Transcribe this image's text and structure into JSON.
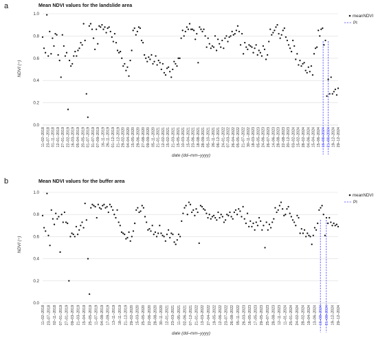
{
  "chart_data": [
    {
      "panel": "a",
      "type": "scatter",
      "title": "Mean NDVI values for the landslide area",
      "xlabel": "date (dd–mm–yyyy)",
      "ylabel": "NDVI (−)",
      "ylim": [
        0,
        1.0
      ],
      "yticks": [
        "0.0",
        "0.2",
        "0.4",
        "0.6",
        "0.8",
        "1.0"
      ],
      "grid": true,
      "legend_placement": "top-right",
      "x_tick_labels": [
        "11–02–2018",
        "23–07–2018",
        "01–11–2018",
        "12–01–2019",
        "27–01–2019",
        "22–02–2019",
        "16–03–2019",
        "05–04–2019",
        "20–05–2019",
        "01–07–2019",
        "31–07–2019",
        "07–09–2019",
        "16–11–2019",
        "26–11–2019",
        "01–12–2019",
        "21–12–2019",
        "29–02–2020",
        "04–04–2020",
        "15–05–2020",
        "29–06–2020",
        "27–08–2020",
        "09–09–2020",
        "05–11–2020",
        "21–01–2021",
        "12–02–2021",
        "15–02–2021",
        "21–03–2021",
        "15–05–2021",
        "10–03–2021",
        "15–04–2021",
        "23–06–2021",
        "18–08–2021",
        "28–09–2021",
        "05–10–2021",
        "26–11–2021",
        "06–12–2021",
        "24–01–2022",
        "07–03–2022",
        "26–04–2022",
        "05–05–2022",
        "21–07–2022",
        "30–11–2022",
        "18–03–2023",
        "05–05–2023",
        "24–06–2023",
        "26–07–2023",
        "14–06–2023",
        "28–08–2023",
        "22–08–2023",
        "20–12–2023",
        "03–02–2024",
        "15–02–2024",
        "28–02–2024",
        "04–06–2024",
        "15–04–2024",
        "15–06–2024",
        "16–08–2024",
        "21–08–2024",
        "19–12–2024",
        "29–12–2024"
      ],
      "pi_tick_indices": [
        56,
        57
      ],
      "pi_date": "16–08–2024",
      "series": [
        {
          "name": "meanNDVI",
          "color": "#141414",
          "marker": "dot",
          "values": [
            0.79,
            0.69,
            0.65,
            0.99,
            0.62,
            0.84,
            0.64,
            0.78,
            0.71,
            0.82,
            0.81,
            0.63,
            0.58,
            0.43,
            0.81,
            0.71,
            0.62,
            0.65,
            0.14,
            0.58,
            0.53,
            0.55,
            0.62,
            0.66,
            0.62,
            0.67,
            0.69,
            0.74,
            0.72,
            0.91,
            0.76,
            0.28,
            0.07,
            0.89,
            0.91,
            0.86,
            0.78,
            0.68,
            0.86,
            0.73,
            0.89,
            0.88,
            0.9,
            0.86,
            0.88,
            0.83,
            0.87,
            0.88,
            0.84,
            0.79,
            0.75,
            0.82,
            0.74,
            0.67,
            0.65,
            0.66,
            0.6,
            0.53,
            0.55,
            0.49,
            0.52,
            0.44,
            0.58,
            0.67,
            0.85,
            0.87,
            0.81,
            0.84,
            0.88,
            0.87,
            0.76,
            0.74,
            0.63,
            0.6,
            0.57,
            0.61,
            0.59,
            0.63,
            0.55,
            0.57,
            0.62,
            0.54,
            0.58,
            0.56,
            0.5,
            0.55,
            0.47,
            0.45,
            0.51,
            0.52,
            0.48,
            0.43,
            0.5,
            0.57,
            0.55,
            0.53,
            0.6,
            0.6,
            0.78,
            0.85,
            0.8,
            0.84,
            0.88,
            0.86,
            0.91,
            0.86,
            0.86,
            0.85,
            0.77,
            0.82,
            0.56,
            0.88,
            0.86,
            0.84,
            0.86,
            0.8,
            0.7,
            0.78,
            0.73,
            0.69,
            0.71,
            0.7,
            0.8,
            0.67,
            0.77,
            0.73,
            0.7,
            0.76,
            0.69,
            0.78,
            0.8,
            0.75,
            0.79,
            0.8,
            0.84,
            0.81,
            0.82,
            0.85,
            0.89,
            0.84,
            0.72,
            0.82,
            0.64,
            0.74,
            0.7,
            0.68,
            0.72,
            0.71,
            0.7,
            0.65,
            0.69,
            0.72,
            0.63,
            0.67,
            0.65,
            0.62,
            0.71,
            0.68,
            0.59,
            0.63,
            0.75,
            0.86,
            0.81,
            0.83,
            0.85,
            0.88,
            0.9,
            0.82,
            0.78,
            0.81,
            0.85,
            0.87,
            0.79,
            0.76,
            0.72,
            0.69,
            0.66,
            0.76,
            0.71,
            0.59,
            0.64,
            0.54,
            0.58,
            0.53,
            0.55,
            0.56,
            0.49,
            0.47,
            0.52,
            0.48,
            0.53,
            0.45,
            0.64,
            0.69,
            0.7,
            0.85,
            0.8,
            0.86,
            0.87,
            0.72,
            0.76,
            0.26,
            0.41,
            0.28,
            0.43,
            0.28,
            0.3,
            0.32,
            0.27,
            0.33
          ]
        }
      ],
      "legend": [
        {
          "label": "meanNDVI",
          "style": "dot"
        },
        {
          "label": "PI",
          "style": "dashed",
          "color": "#3b3bff"
        }
      ]
    },
    {
      "panel": "b",
      "type": "scatter",
      "title": "Mean NDVI values for the buffer area",
      "xlabel": "date (dd–mm–yyyy)",
      "ylabel": "NDVI (−)",
      "ylim": [
        0,
        1.0
      ],
      "yticks": [
        "0.0",
        "0.2",
        "0.4",
        "0.6",
        "0.8",
        "1.0"
      ],
      "grid": true,
      "legend_placement": "top-right",
      "x_tick_labels": [
        "11–02–2018",
        "23–07–2018",
        "02–11–2018",
        "07–01–2019",
        "27–01–2019",
        "09–03–2019",
        "21–03–2019",
        "15–04–2019",
        "25–05–2019",
        "11–07–2019",
        "04–08–2019",
        "17–09–2019",
        "13–11–2019",
        "18–11–2019",
        "21–12–2019",
        "29–02–2020",
        "15–03–2020",
        "25–05–2020",
        "22–06–2020",
        "28–08–2020",
        "30–11–2020",
        "12–01–2021",
        "23–03–2021",
        "11–05–2021",
        "02–06–2021",
        "07–12–2021",
        "21–01–2022",
        "13–03–2022",
        "27–04–2022",
        "19–05–2022",
        "12–06–2022",
        "23–07–2022",
        "26–08–2022",
        "05–11–2022",
        "26–03–2023",
        "16–05–2023",
        "17–05–2023",
        "29–05–2023",
        "25–07–2023",
        "28–08–2023",
        "12–11–2023",
        "11–01–2024",
        "25–01–2024",
        "24–02–2024",
        "28–02–2024",
        "19–04–2024",
        "13–06–2024",
        "16–08–2024",
        "21–08–2024",
        "19–12–2024",
        "29–12–2024"
      ],
      "pi_tick_indices": [
        47,
        48
      ],
      "pi_date": "16–08–2024",
      "series": [
        {
          "name": "meanNDVI",
          "color": "#141414",
          "marker": "dot",
          "values": [
            0.79,
            0.68,
            0.65,
            0.99,
            0.61,
            0.52,
            0.84,
            0.76,
            0.71,
            0.81,
            0.76,
            0.78,
            0.46,
            0.8,
            0.73,
            0.82,
            0.73,
            0.72,
            0.2,
            0.6,
            0.63,
            0.62,
            0.6,
            0.69,
            0.62,
            0.66,
            0.7,
            0.73,
            0.68,
            0.9,
            0.75,
            0.4,
            0.08,
            0.86,
            0.89,
            0.88,
            0.87,
            0.77,
            0.89,
            0.86,
            0.85,
            0.88,
            0.89,
            0.86,
            0.87,
            0.82,
            0.89,
            0.87,
            0.84,
            0.8,
            0.77,
            0.84,
            0.73,
            0.7,
            0.64,
            0.63,
            0.62,
            0.58,
            0.59,
            0.64,
            0.56,
            0.6,
            0.65,
            0.72,
            0.84,
            0.86,
            0.82,
            0.83,
            0.88,
            0.86,
            0.78,
            0.73,
            0.66,
            0.67,
            0.65,
            0.7,
            0.62,
            0.64,
            0.6,
            0.63,
            0.7,
            0.63,
            0.61,
            0.6,
            0.56,
            0.62,
            0.66,
            0.59,
            0.63,
            0.62,
            0.55,
            0.53,
            0.57,
            0.62,
            0.6,
            0.74,
            0.81,
            0.86,
            0.88,
            0.8,
            0.91,
            0.89,
            0.82,
            0.84,
            0.79,
            0.85,
            0.82,
            0.54,
            0.88,
            0.87,
            0.85,
            0.84,
            0.81,
            0.77,
            0.8,
            0.76,
            0.78,
            0.79,
            0.77,
            0.75,
            0.82,
            0.77,
            0.8,
            0.78,
            0.73,
            0.75,
            0.8,
            0.79,
            0.82,
            0.78,
            0.76,
            0.82,
            0.84,
            0.8,
            0.85,
            0.83,
            0.78,
            0.87,
            0.76,
            0.72,
            0.81,
            0.69,
            0.74,
            0.69,
            0.72,
            0.66,
            0.73,
            0.7,
            0.77,
            0.74,
            0.66,
            0.7,
            0.5,
            0.73,
            0.66,
            0.71,
            0.68,
            0.73,
            0.76,
            0.86,
            0.82,
            0.84,
            0.88,
            0.91,
            0.85,
            0.79,
            0.8,
            0.85,
            0.87,
            0.81,
            0.78,
            0.75,
            0.73,
            0.7,
            0.79,
            0.77,
            0.63,
            0.67,
            0.63,
            0.66,
            0.6,
            0.63,
            0.61,
            0.6,
            0.53,
            0.61,
            0.68,
            0.66,
            0.72,
            0.84,
            0.86,
            0.88,
            0.8,
            0.61,
            0.77,
            0.72,
            0.77,
            0.73,
            0.7,
            0.72,
            0.7,
            0.71,
            0.69
          ]
        }
      ],
      "legend": [
        {
          "label": "meanNDVI",
          "style": "dot"
        },
        {
          "label": "PI",
          "style": "dashed",
          "color": "#3b3bff"
        }
      ]
    }
  ]
}
